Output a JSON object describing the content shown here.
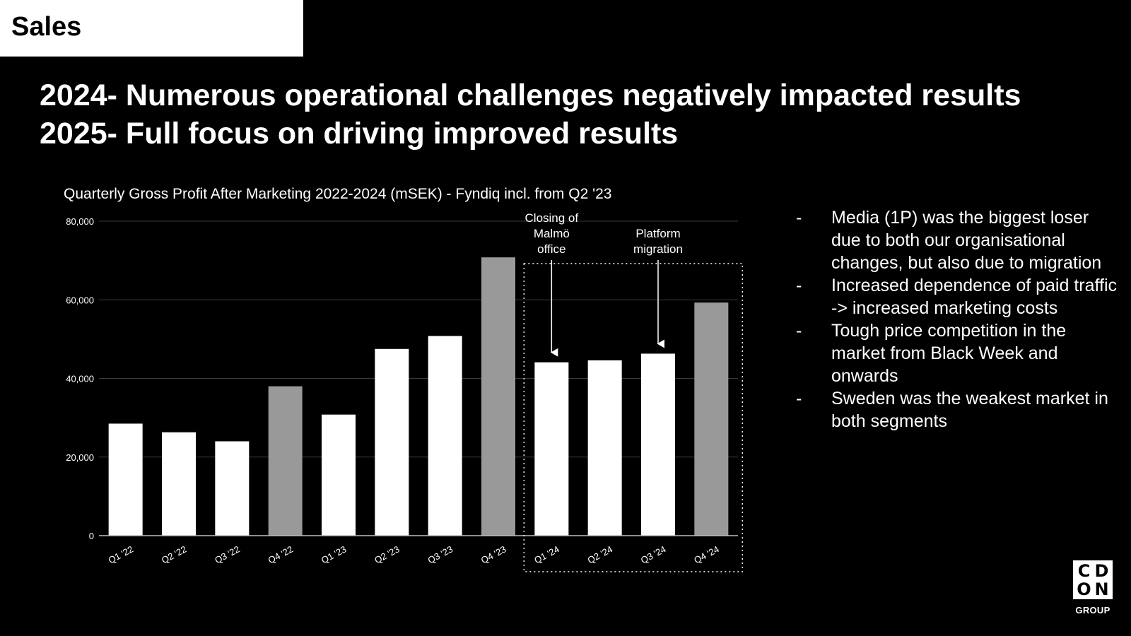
{
  "section": {
    "label": "Sales"
  },
  "headline": {
    "line1": "2024- Numerous operational challenges negatively impacted results",
    "line2": "2025- Full focus on driving improved results"
  },
  "chart_data": {
    "type": "bar",
    "title": "Quarterly Gross Profit After Marketing 2022-2024 (mSEK) - Fyndiq incl. from Q2 '23",
    "categories": [
      "Q1 '22",
      "Q2 '22",
      "Q3 '22",
      "Q4 '22",
      "Q1 '23",
      "Q2 '23",
      "Q3 '23",
      "Q4 '23",
      "Q1 '24",
      "Q2 '24",
      "Q3 '24",
      "Q4 '24"
    ],
    "values": [
      28500,
      26300,
      24000,
      38000,
      30800,
      47500,
      50800,
      70800,
      44100,
      44600,
      46300,
      59300
    ],
    "highlighted": [
      false,
      false,
      false,
      true,
      false,
      false,
      false,
      true,
      false,
      false,
      false,
      true
    ],
    "ylim": [
      0,
      80000
    ],
    "yticks": [
      0,
      20000,
      40000,
      60000,
      80000
    ],
    "ytick_labels": [
      "0",
      "20,000",
      "40,000",
      "60,000",
      "80,000"
    ],
    "xlabel": "",
    "ylabel": "",
    "grid": true,
    "colors": {
      "default": "#ffffff",
      "highlight": "#999999",
      "grid": "#3a3a3a",
      "axis": "#bdbdbd",
      "text": "#ffffff"
    },
    "annotations": [
      {
        "lines": [
          "Closing of",
          "Malmö",
          "office"
        ],
        "category": "Q1 '24"
      },
      {
        "lines": [
          "Platform",
          "migration"
        ],
        "category": "Q3 '24"
      }
    ],
    "highlight_box": {
      "from": "Q1 '24",
      "to": "Q4 '24"
    }
  },
  "bullets": [
    {
      "dash": "-",
      "text": "Media (1P) was the biggest loser due to both our organisational changes, but also due to migration"
    },
    {
      "dash": "-",
      "text": "Increased dependence of paid traffic -> increased marketing costs"
    },
    {
      "dash": "-",
      "text": "Tough price competition in the market from Black Week and onwards"
    },
    {
      "dash": "-",
      "text": "Sweden was the weakest market in both segments"
    }
  ],
  "logo": {
    "letters": [
      "C",
      "D",
      "O",
      "N"
    ],
    "subtitle": "GROUP"
  }
}
